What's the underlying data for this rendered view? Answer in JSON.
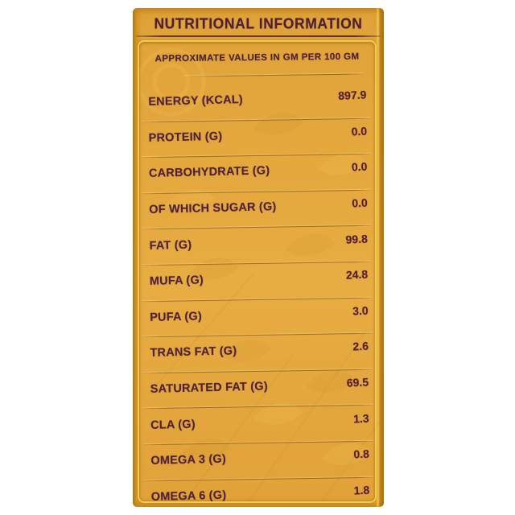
{
  "label": {
    "title": "NUTRITIONAL INFORMATION",
    "subtitle": "APPROXIMATE VALUES IN GM PER 100 GM",
    "rows": [
      {
        "name": "ENERGY (KCAL)",
        "value": "897.9"
      },
      {
        "name": "PROTEIN (G)",
        "value": "0.0"
      },
      {
        "name": "CARBOHYDRATE (G)",
        "value": "0.0"
      },
      {
        "name": "OF WHICH SUGAR (G)",
        "value": "0.0"
      },
      {
        "name": "FAT (G)",
        "value": "99.8"
      },
      {
        "name": "MUFA (G)",
        "value": "24.8"
      },
      {
        "name": "PUFA (G)",
        "value": "3.0"
      },
      {
        "name": "TRANS FAT (G)",
        "value": "2.6"
      },
      {
        "name": "SATURATED FAT (G)",
        "value": "69.5"
      },
      {
        "name": "CLA (G)",
        "value": "1.3"
      },
      {
        "name": "OMEGA 3 (G)",
        "value": "0.8"
      },
      {
        "name": "OMEGA 6 (G)",
        "value": "1.8"
      }
    ],
    "colors": {
      "label_background": "#e2a840",
      "label_edge": "#b07812",
      "inner_border": "#f0cc52",
      "text": "#4d2037",
      "page_background": "#ffffff"
    }
  }
}
